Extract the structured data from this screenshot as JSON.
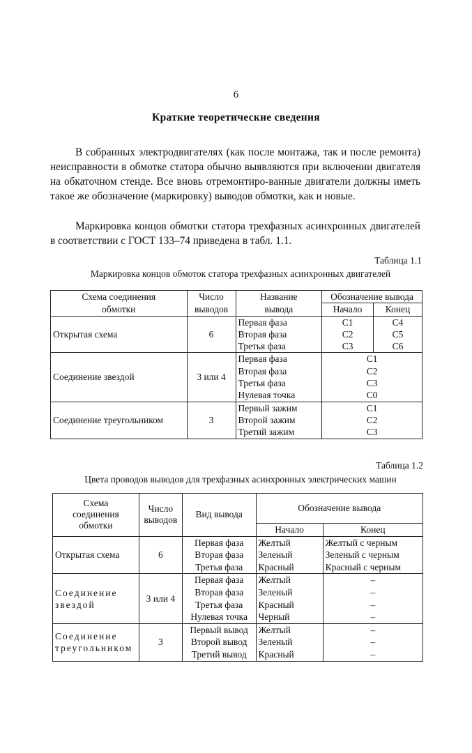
{
  "page_number": "6",
  "heading": "Краткие теоретические сведения",
  "paragraphs": [
    "В собранных электродвигателях (как после монтажа, так и после ремонта) неисправности в обмотке статора обычно выявляются при включении двигателя на обкаточном стенде. Все вновь отремонтиро-ванные двигатели должны иметь такое же обозначение (маркировку) выводов обмотки, как и новые.",
    "Маркировка концов обмотки статора трехфазных асинхронных двигателей в соответствии с ГОСТ 133–74 приведена в табл. 1.1."
  ],
  "table1": {
    "label": "Таблица 1.1",
    "caption": "Маркировка концов обмоток статора трехфазных асинхронных двигателей",
    "headers": {
      "scheme": "Схема соединения обмотки",
      "count": "Число выводов",
      "name": "Название вывода",
      "designation": "Обозначение вывода",
      "start": "Начало",
      "end": "Конец"
    },
    "groups": [
      {
        "scheme": "Открытая схема",
        "count": "6",
        "names": [
          "Первая фаза",
          "Вторая фаза",
          "Третья фаза"
        ],
        "start": [
          "C1",
          "C2",
          "C3"
        ],
        "end": [
          "C4",
          "C5",
          "C6"
        ]
      },
      {
        "scheme": "Соединение звездой",
        "count": "3 или 4",
        "names": [
          "Первая фаза",
          "Вторая фаза",
          "Третья фаза",
          "Нулевая точка"
        ],
        "merged": [
          "C1",
          "C2",
          "C3",
          "C0"
        ]
      },
      {
        "scheme": "Соединение треугольником",
        "count": "3",
        "names": [
          "Первый зажим",
          "Второй зажим",
          "Третий зажим"
        ],
        "merged": [
          "C1",
          "C2",
          "C3"
        ]
      }
    ]
  },
  "table2": {
    "label": "Таблица 1.2",
    "caption": "Цвета проводов выводов для трехфазных асинхронных электрических машин",
    "headers": {
      "scheme": "Схема соединения обмотки",
      "count": "Число выводов",
      "kind": "Вид вывода",
      "designation": "Обозначение вывода",
      "start": "Начало",
      "end": "Конец"
    },
    "groups": [
      {
        "scheme": "Открытая схема",
        "count": "6",
        "kinds": [
          "Первая фаза",
          "Вторая фаза",
          "Третья фаза"
        ],
        "start": [
          "Желтый",
          "Зеленый",
          "Красный"
        ],
        "end": [
          "Желтый с черным",
          "Зеленый с черным",
          "Красный с черным"
        ]
      },
      {
        "scheme": "Соединение звездой",
        "count": "3 или 4",
        "kinds": [
          "Первая фаза",
          "Вторая фаза",
          "Третья фаза",
          "Нулевая точка"
        ],
        "start": [
          "Желтый",
          "Зеленый",
          "Красный",
          "Черный"
        ],
        "end": [
          "–",
          "–",
          "–",
          "–"
        ]
      },
      {
        "scheme": "Соединение треугольником",
        "count": "3",
        "kinds": [
          "Первый вывод",
          "Второй вывод",
          "Третий вывод"
        ],
        "start": [
          "Желтый",
          "Зеленый",
          "Красный"
        ],
        "end": [
          "–",
          "–",
          "–"
        ]
      }
    ]
  }
}
